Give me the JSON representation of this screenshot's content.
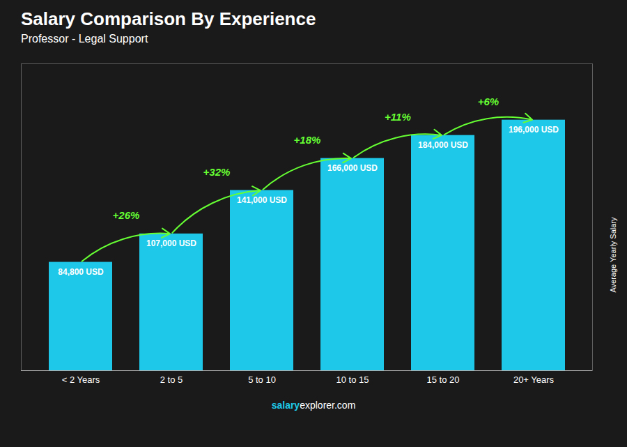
{
  "chart_data": {
    "type": "bar",
    "title": "Salary Comparison By Experience",
    "subtitle": "Professor - Legal Support",
    "categories": [
      "< 2 Years",
      "2 to 5",
      "5 to 10",
      "10 to 15",
      "15 to 20",
      "20+ Years"
    ],
    "values": [
      84800,
      107000,
      141000,
      166000,
      184000,
      196000
    ],
    "value_labels": [
      "84,800 USD",
      "107,000 USD",
      "141,000 USD",
      "166,000 USD",
      "184,000 USD",
      "196,000 USD"
    ],
    "data_labels": true,
    "color": "#1EC8E8",
    "ylabel": "Average Yearly Salary",
    "ylim": [
      0,
      240000
    ],
    "tick_labels": "x",
    "grid": false,
    "annotations": [
      {
        "text": "+26%",
        "from": "< 2 Years",
        "to": "2 to 5",
        "color": "#66FF33"
      },
      {
        "text": "+32%",
        "from": "2 to 5",
        "to": "5 to 10",
        "color": "#66FF33"
      },
      {
        "text": "+18%",
        "from": "5 to 10",
        "to": "10 to 15",
        "color": "#66FF33"
      },
      {
        "text": "+11%",
        "from": "10 to 15",
        "to": "15 to 20",
        "color": "#66FF33"
      },
      {
        "text": "+6%",
        "from": "15 to 20",
        "to": "20+ Years",
        "color": "#66FF33"
      }
    ],
    "footer": [
      "salary",
      "explorer.com"
    ]
  }
}
